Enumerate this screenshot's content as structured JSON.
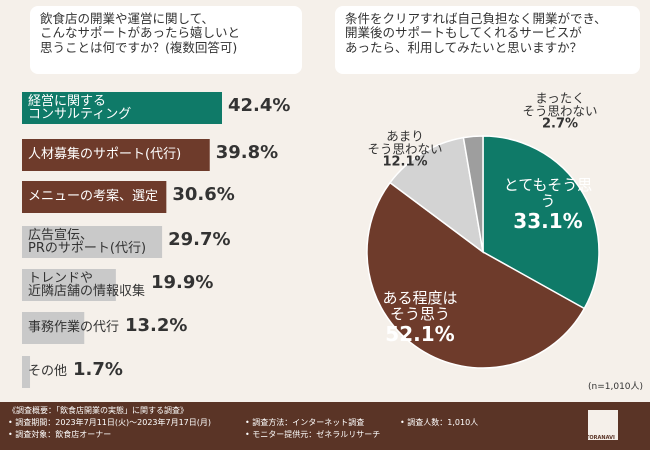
{
  "chart_data": [
    {
      "type": "bar",
      "orientation": "horizontal",
      "title": "飲食店の開業や運営に関して、\nこんなサポートがあったら嬉しいと\n思うことは何ですか？(複数回答可)",
      "categories": [
        "経営に関する\nコンサルティング",
        "人材募集のサポート(代行)",
        "メニューの考案、選定",
        "広告宣伝、\nPRのサポート(代行)",
        "トレンドや\n近隣店舗の情報収集",
        "事務作業の代行",
        "その他"
      ],
      "values": [
        42.4,
        39.8,
        30.6,
        29.7,
        19.9,
        13.2,
        1.7
      ],
      "value_labels": [
        "42.4%",
        "39.8%",
        "30.6%",
        "29.7%",
        "19.9%",
        "13.2%",
        "1.7%"
      ],
      "colors": [
        "#0f7a68",
        "#6e3b2b",
        "#6e3b2b",
        "#c9c9c9",
        "#c9c9c9",
        "#c9c9c9",
        "#c9c9c9"
      ]
    },
    {
      "type": "pie",
      "title": "条件をクリアすれば自己負担なく開業ができ、\n開業後のサポートもしてくれるサービスが\nあったら、利用してみたいと思いますか？",
      "categories": [
        "とてもそう思う",
        "ある程度は\nそう思う",
        "あまり\nそう思わない",
        "まったく\nそう思わない"
      ],
      "values": [
        33.1,
        52.1,
        12.1,
        2.7
      ],
      "value_labels": [
        "33.1%",
        "52.1%",
        "12.1%",
        "2.7%"
      ],
      "colors": [
        "#0f7a68",
        "#6e3b2b",
        "#d3d3d3",
        "#9e9e9e"
      ],
      "note": "(n=1,010人)"
    }
  ],
  "footer": {
    "heading": "《調査概要：「飲食店開業の実態」に関する調査》",
    "items": [
      "調査期間：2023年7月11日(火)～2023年7月17日(月)",
      "調査対象：飲食店オーナー",
      "調査方法：インターネット調査",
      "モニター提供元：ゼネラルリサーチ",
      "調査人数：1,010人"
    ],
    "logo": "TORANAVI"
  }
}
